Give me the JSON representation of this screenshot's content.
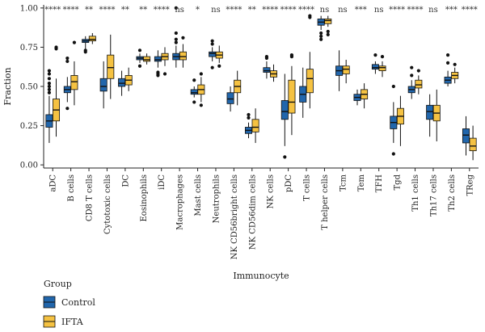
{
  "chart_data": {
    "type": "boxplot",
    "xlabel": "Immunocyte",
    "ylabel": "Fraction",
    "ylim": [
      -0.02,
      1.02
    ],
    "yticks": [
      "0.00",
      "0.25",
      "0.50",
      "0.75",
      "1.00"
    ],
    "grid": false,
    "legend": {
      "title": "Group",
      "placement": "bottom-left",
      "items": [
        {
          "label": "Control",
          "color": "#2166ac"
        },
        {
          "label": "IFTA",
          "color": "#f5c242"
        }
      ]
    },
    "categories": [
      "aDC",
      "B cells",
      "CD8 T cells",
      "Cytotoxic cells",
      "DC",
      "Eosinophils",
      "iDC",
      "Macrophages",
      "Mast cells",
      "Neutrophils",
      "NK CD56bright cells",
      "NK CD56dim cells",
      "NK cells",
      "pDC",
      "T cells",
      "T helper cells",
      "Tcm",
      "Tem",
      "TFH",
      "Tgd",
      "Th1 cells",
      "Th17 cells",
      "Th2 cells",
      "TReg"
    ],
    "significance": [
      "****",
      "****",
      "**",
      "****",
      "**",
      "**",
      "****",
      "ns",
      "*",
      "ns",
      "****",
      "**",
      "****",
      "****",
      "****",
      "ns",
      "ns",
      "***",
      "ns",
      "****",
      "****",
      "ns",
      "***",
      "****"
    ],
    "series": [
      {
        "name": "Control",
        "boxes": [
          {
            "whisker_low": 0.14,
            "q1": 0.24,
            "median": 0.28,
            "q3": 0.32,
            "whisker_high": 0.44,
            "outliers": [
              0.46,
              0.48,
              0.5,
              0.52,
              0.55,
              0.58,
              0.6
            ]
          },
          {
            "whisker_low": 0.4,
            "q1": 0.46,
            "median": 0.48,
            "q3": 0.5,
            "whisker_high": 0.56,
            "outliers": [
              0.36,
              0.66,
              0.68
            ]
          },
          {
            "whisker_low": 0.74,
            "q1": 0.78,
            "median": 0.79,
            "q3": 0.8,
            "whisker_high": 0.82,
            "outliers": [
              0.72,
              0.73
            ]
          },
          {
            "whisker_low": 0.36,
            "q1": 0.47,
            "median": 0.5,
            "q3": 0.55,
            "whisker_high": 0.66,
            "outliers": []
          },
          {
            "whisker_low": 0.44,
            "q1": 0.5,
            "median": 0.52,
            "q3": 0.55,
            "whisker_high": 0.6,
            "outliers": []
          },
          {
            "whisker_low": 0.65,
            "q1": 0.67,
            "median": 0.68,
            "q3": 0.69,
            "whisker_high": 0.71,
            "outliers": [
              0.63,
              0.73
            ]
          },
          {
            "whisker_low": 0.62,
            "q1": 0.66,
            "median": 0.67,
            "q3": 0.69,
            "whisker_high": 0.73,
            "outliers": [
              0.57,
              0.58,
              0.59
            ]
          },
          {
            "whisker_low": 0.62,
            "q1": 0.67,
            "median": 0.69,
            "q3": 0.71,
            "whisker_high": 0.76,
            "outliers": [
              0.78,
              0.8,
              0.84,
              1.0
            ]
          },
          {
            "whisker_low": 0.43,
            "q1": 0.45,
            "median": 0.46,
            "q3": 0.48,
            "whisker_high": 0.5,
            "outliers": [
              0.4,
              0.54
            ]
          },
          {
            "whisker_low": 0.66,
            "q1": 0.69,
            "median": 0.71,
            "q3": 0.72,
            "whisker_high": 0.75,
            "outliers": [
              0.62,
              0.77,
              0.79
            ]
          },
          {
            "whisker_low": 0.34,
            "q1": 0.39,
            "median": 0.42,
            "q3": 0.46,
            "whisker_high": 0.5,
            "outliers": []
          },
          {
            "whisker_low": 0.17,
            "q1": 0.2,
            "median": 0.22,
            "q3": 0.24,
            "whisker_high": 0.27,
            "outliers": [
              0.3,
              0.32
            ]
          },
          {
            "whisker_low": 0.55,
            "q1": 0.59,
            "median": 0.6,
            "q3": 0.62,
            "whisker_high": 0.66,
            "outliers": [
              0.68,
              0.69
            ]
          },
          {
            "whisker_low": 0.12,
            "q1": 0.29,
            "median": 0.34,
            "q3": 0.41,
            "whisker_high": 0.58,
            "outliers": [
              0.05
            ]
          },
          {
            "whisker_low": 0.3,
            "q1": 0.4,
            "median": 0.45,
            "q3": 0.5,
            "whisker_high": 0.62,
            "outliers": []
          },
          {
            "whisker_low": 0.86,
            "q1": 0.89,
            "median": 0.91,
            "q3": 0.93,
            "whisker_high": 0.95,
            "outliers": [
              0.8,
              0.82,
              0.84
            ]
          },
          {
            "whisker_low": 0.47,
            "q1": 0.57,
            "median": 0.6,
            "q3": 0.63,
            "whisker_high": 0.73,
            "outliers": []
          },
          {
            "whisker_low": 0.38,
            "q1": 0.41,
            "median": 0.43,
            "q3": 0.45,
            "whisker_high": 0.48,
            "outliers": []
          },
          {
            "whisker_low": 0.58,
            "q1": 0.61,
            "median": 0.62,
            "q3": 0.64,
            "whisker_high": 0.66,
            "outliers": [
              0.7
            ]
          },
          {
            "whisker_low": 0.14,
            "q1": 0.23,
            "median": 0.27,
            "q3": 0.31,
            "whisker_high": 0.4,
            "outliers": [
              0.07,
              0.5
            ]
          },
          {
            "whisker_low": 0.42,
            "q1": 0.46,
            "median": 0.48,
            "q3": 0.5,
            "whisker_high": 0.54,
            "outliers": [
              0.57,
              0.62
            ]
          },
          {
            "whisker_low": 0.18,
            "q1": 0.29,
            "median": 0.34,
            "q3": 0.38,
            "whisker_high": 0.45,
            "outliers": []
          },
          {
            "whisker_low": 0.5,
            "q1": 0.52,
            "median": 0.54,
            "q3": 0.56,
            "whisker_high": 0.6,
            "outliers": [
              0.65,
              0.7
            ]
          },
          {
            "whisker_low": 0.06,
            "q1": 0.14,
            "median": 0.19,
            "q3": 0.23,
            "whisker_high": 0.31,
            "outliers": []
          }
        ]
      },
      {
        "name": "IFTA",
        "boxes": [
          {
            "whisker_low": 0.18,
            "q1": 0.28,
            "median": 0.35,
            "q3": 0.42,
            "whisker_high": 0.55,
            "outliers": [
              0.74,
              0.75
            ]
          },
          {
            "whisker_low": 0.38,
            "q1": 0.48,
            "median": 0.53,
            "q3": 0.57,
            "whisker_high": 0.66,
            "outliers": [
              0.78
            ]
          },
          {
            "whisker_low": 0.77,
            "q1": 0.79,
            "median": 0.8,
            "q3": 0.82,
            "whisker_high": 0.84,
            "outliers": []
          },
          {
            "whisker_low": 0.42,
            "q1": 0.55,
            "median": 0.62,
            "q3": 0.7,
            "whisker_high": 0.83,
            "outliers": []
          },
          {
            "whisker_low": 0.47,
            "q1": 0.51,
            "median": 0.54,
            "q3": 0.57,
            "whisker_high": 0.62,
            "outliers": []
          },
          {
            "whisker_low": 0.64,
            "q1": 0.66,
            "median": 0.67,
            "q3": 0.69,
            "whisker_high": 0.71,
            "outliers": []
          },
          {
            "whisker_low": 0.63,
            "q1": 0.67,
            "median": 0.69,
            "q3": 0.71,
            "whisker_high": 0.75,
            "outliers": [
              0.58
            ]
          },
          {
            "whisker_low": 0.62,
            "q1": 0.67,
            "median": 0.69,
            "q3": 0.72,
            "whisker_high": 0.77,
            "outliers": [
              0.81
            ]
          },
          {
            "whisker_low": 0.4,
            "q1": 0.45,
            "median": 0.48,
            "q3": 0.51,
            "whisker_high": 0.56,
            "outliers": [
              0.38,
              0.58
            ]
          },
          {
            "whisker_low": 0.65,
            "q1": 0.68,
            "median": 0.7,
            "q3": 0.72,
            "whisker_high": 0.76,
            "outliers": [
              0.63
            ]
          },
          {
            "whisker_low": 0.38,
            "q1": 0.46,
            "median": 0.5,
            "q3": 0.54,
            "whisker_high": 0.6,
            "outliers": []
          },
          {
            "whisker_low": 0.14,
            "q1": 0.21,
            "median": 0.24,
            "q3": 0.29,
            "whisker_high": 0.36,
            "outliers": []
          },
          {
            "whisker_low": 0.53,
            "q1": 0.56,
            "median": 0.58,
            "q3": 0.6,
            "whisker_high": 0.64,
            "outliers": []
          },
          {
            "whisker_low": 0.19,
            "q1": 0.33,
            "median": 0.4,
            "q3": 0.54,
            "whisker_high": 0.63,
            "outliers": [
              0.69,
              0.7
            ]
          },
          {
            "whisker_low": 0.36,
            "q1": 0.46,
            "median": 0.55,
            "q3": 0.61,
            "whisker_high": 0.72,
            "outliers": [
              0.94,
              0.95
            ]
          },
          {
            "whisker_low": 0.88,
            "q1": 0.9,
            "median": 0.92,
            "q3": 0.93,
            "whisker_high": 0.95,
            "outliers": [
              0.83,
              0.85
            ]
          },
          {
            "whisker_low": 0.52,
            "q1": 0.58,
            "median": 0.61,
            "q3": 0.63,
            "whisker_high": 0.67,
            "outliers": []
          },
          {
            "whisker_low": 0.36,
            "q1": 0.42,
            "median": 0.45,
            "q3": 0.48,
            "whisker_high": 0.52,
            "outliers": []
          },
          {
            "whisker_low": 0.56,
            "q1": 0.6,
            "median": 0.62,
            "q3": 0.63,
            "whisker_high": 0.66,
            "outliers": [
              0.69
            ]
          },
          {
            "whisker_low": 0.12,
            "q1": 0.26,
            "median": 0.31,
            "q3": 0.36,
            "whisker_high": 0.44,
            "outliers": []
          },
          {
            "whisker_low": 0.45,
            "q1": 0.49,
            "median": 0.51,
            "q3": 0.54,
            "whisker_high": 0.57,
            "outliers": [
              0.6
            ]
          },
          {
            "whisker_low": 0.15,
            "q1": 0.28,
            "median": 0.33,
            "q3": 0.38,
            "whisker_high": 0.48,
            "outliers": []
          },
          {
            "whisker_low": 0.52,
            "q1": 0.55,
            "median": 0.57,
            "q3": 0.59,
            "whisker_high": 0.62,
            "outliers": [
              0.64
            ]
          },
          {
            "whisker_low": 0.03,
            "q1": 0.09,
            "median": 0.12,
            "q3": 0.17,
            "whisker_high": 0.25,
            "outliers": []
          }
        ]
      }
    ]
  }
}
